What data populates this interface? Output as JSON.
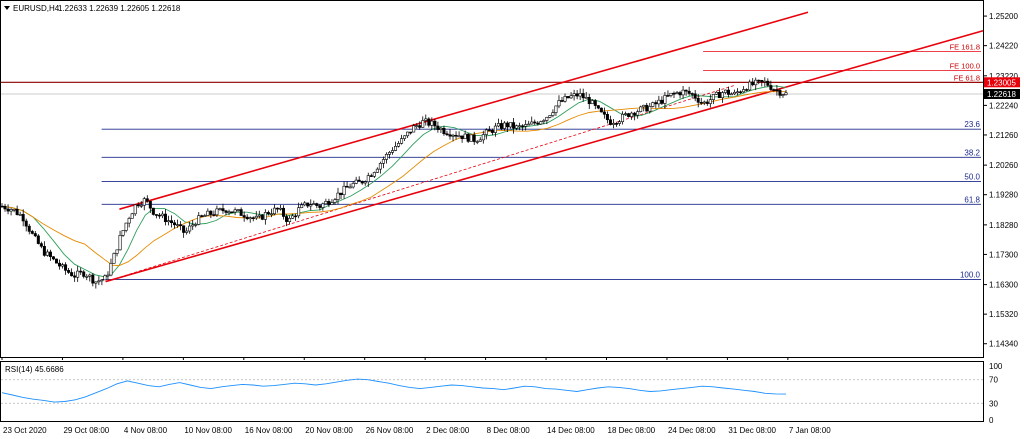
{
  "header": {
    "symbol": "EURUSD,H4",
    "ohlc": "1.22633 1.22639 1.22605 1.22618",
    "menu_icon": "triangle-down-icon"
  },
  "colors": {
    "background": "#ffffff",
    "candle": "#000000",
    "channel": "#e8000b",
    "fib_line": "#1b2a8c",
    "fe_line": "#e8000b",
    "ma_fast": "#2e9e5b",
    "ma_slow": "#e68a00",
    "rsi": "#1e90ff",
    "price_tag_red": "#e8000b",
    "price_tag_black": "#000000"
  },
  "chart_data": [
    {
      "type": "candlestick",
      "title": "EURUSD,H4",
      "x": [
        "23 Oct 2020",
        "29 Oct 08:00",
        "4 Nov 08:00",
        "10 Nov 08:00",
        "16 Nov 08:00",
        "20 Nov 08:00",
        "26 Nov 08:00",
        "2 Dec 08:00",
        "8 Dec 08:00",
        "14 Dec 08:00",
        "18 Dec 08:00",
        "24 Dec 08:00",
        "31 Dec 08:00",
        "7 Jan 08:00"
      ],
      "y_ticks": [
        "1.25200",
        "1.24220",
        "1.23220",
        "1.22240",
        "1.21260",
        "1.20260",
        "1.19280",
        "1.18280",
        "1.17300",
        "1.16300",
        "1.15320",
        "1.14340"
      ],
      "ylim": [
        1.139,
        1.257
      ],
      "close_path": [
        {
          "x": 0,
          "close": 1.189
        },
        {
          "x": 0.6,
          "close": 1.188
        },
        {
          "x": 1.2,
          "close": 1.1855
        },
        {
          "x": 1.8,
          "close": 1.179
        },
        {
          "x": 2.4,
          "close": 1.174
        },
        {
          "x": 3.0,
          "close": 1.171
        },
        {
          "x": 3.6,
          "close": 1.168
        },
        {
          "x": 4.2,
          "close": 1.166
        },
        {
          "x": 4.8,
          "close": 1.167
        },
        {
          "x": 5.4,
          "close": 1.164
        },
        {
          "x": 6.0,
          "close": 1.165
        },
        {
          "x": 6.4,
          "close": 1.171
        },
        {
          "x": 6.8,
          "close": 1.178
        },
        {
          "x": 7.3,
          "close": 1.185
        },
        {
          "x": 7.8,
          "close": 1.19
        },
        {
          "x": 8.3,
          "close": 1.191
        },
        {
          "x": 8.8,
          "close": 1.187
        },
        {
          "x": 9.4,
          "close": 1.185
        },
        {
          "x": 10.0,
          "close": 1.183
        },
        {
          "x": 10.6,
          "close": 1.18
        },
        {
          "x": 11.2,
          "close": 1.184
        },
        {
          "x": 11.8,
          "close": 1.186
        },
        {
          "x": 12.4,
          "close": 1.187
        },
        {
          "x": 13.0,
          "close": 1.188
        },
        {
          "x": 13.6,
          "close": 1.187
        },
        {
          "x": 14.2,
          "close": 1.186
        },
        {
          "x": 14.8,
          "close": 1.1845
        },
        {
          "x": 15.4,
          "close": 1.187
        },
        {
          "x": 16.0,
          "close": 1.188
        },
        {
          "x": 16.6,
          "close": 1.184
        },
        {
          "x": 17.2,
          "close": 1.188
        },
        {
          "x": 17.8,
          "close": 1.19
        },
        {
          "x": 18.4,
          "close": 1.189
        },
        {
          "x": 19.0,
          "close": 1.191
        },
        {
          "x": 19.6,
          "close": 1.1935
        },
        {
          "x": 20.2,
          "close": 1.196
        },
        {
          "x": 20.8,
          "close": 1.197
        },
        {
          "x": 21.4,
          "close": 1.2
        },
        {
          "x": 22.0,
          "close": 1.204
        },
        {
          "x": 22.6,
          "close": 1.208
        },
        {
          "x": 23.2,
          "close": 1.211
        },
        {
          "x": 23.8,
          "close": 1.215
        },
        {
          "x": 24.4,
          "close": 1.217
        },
        {
          "x": 25.0,
          "close": 1.216
        },
        {
          "x": 25.6,
          "close": 1.214
        },
        {
          "x": 26.2,
          "close": 1.213
        },
        {
          "x": 26.8,
          "close": 1.212
        },
        {
          "x": 27.4,
          "close": 1.211
        },
        {
          "x": 28.0,
          "close": 1.213
        },
        {
          "x": 28.6,
          "close": 1.215
        },
        {
          "x": 29.2,
          "close": 1.216
        },
        {
          "x": 29.8,
          "close": 1.215
        },
        {
          "x": 30.4,
          "close": 1.2155
        },
        {
          "x": 31.0,
          "close": 1.217
        },
        {
          "x": 31.6,
          "close": 1.219
        },
        {
          "x": 32.2,
          "close": 1.223
        },
        {
          "x": 32.8,
          "close": 1.225
        },
        {
          "x": 33.4,
          "close": 1.226
        },
        {
          "x": 34.0,
          "close": 1.224
        },
        {
          "x": 34.6,
          "close": 1.22
        },
        {
          "x": 35.2,
          "close": 1.217
        },
        {
          "x": 35.8,
          "close": 1.218
        },
        {
          "x": 36.4,
          "close": 1.22
        },
        {
          "x": 37.0,
          "close": 1.221
        },
        {
          "x": 37.6,
          "close": 1.222
        },
        {
          "x": 38.2,
          "close": 1.224
        },
        {
          "x": 38.8,
          "close": 1.226
        },
        {
          "x": 39.4,
          "close": 1.227
        },
        {
          "x": 40.0,
          "close": 1.226
        },
        {
          "x": 40.6,
          "close": 1.223
        },
        {
          "x": 41.2,
          "close": 1.225
        },
        {
          "x": 41.8,
          "close": 1.227
        },
        {
          "x": 42.4,
          "close": 1.226
        },
        {
          "x": 43.0,
          "close": 1.2285
        },
        {
          "x": 43.6,
          "close": 1.2295
        },
        {
          "x": 44.2,
          "close": 1.23
        },
        {
          "x": 44.8,
          "close": 1.2275
        },
        {
          "x": 45.4,
          "close": 1.2262
        }
      ],
      "fib_retracement": [
        {
          "label": "23.6",
          "price": 1.2145
        },
        {
          "label": "38.2",
          "price": 1.2052
        },
        {
          "label": "50.0",
          "price": 1.1972
        },
        {
          "label": "61.8",
          "price": 1.1896
        },
        {
          "label": "100.0",
          "price": 1.1647
        }
      ],
      "fib_expansion": [
        {
          "label": "FE 161.8",
          "price": 1.2403
        },
        {
          "label": "FE 100.0",
          "price": 1.234
        },
        {
          "label": "FE 61.8",
          "price": 1.23
        }
      ],
      "price_tags": [
        {
          "label": "1.23005",
          "price": 1.23005,
          "color": "red"
        },
        {
          "label": "1.22618",
          "price": 1.22618,
          "color": "black"
        }
      ]
    },
    {
      "type": "line",
      "title": "RSI(14) 45.6686",
      "y_ticks": [
        "100",
        "70",
        "30",
        "0"
      ],
      "ylim": [
        0,
        100
      ],
      "levels": [
        70,
        30
      ],
      "values": [
        48,
        44,
        40,
        37,
        35,
        32,
        33,
        36,
        41,
        48,
        55,
        63,
        68,
        64,
        60,
        58,
        62,
        65,
        61,
        57,
        55,
        58,
        60,
        62,
        61,
        59,
        60,
        62,
        64,
        63,
        61,
        63,
        66,
        69,
        71,
        70,
        67,
        64,
        60,
        57,
        55,
        57,
        59,
        61,
        60,
        58,
        56,
        55,
        53,
        56,
        59,
        58,
        55,
        54,
        52,
        50,
        53,
        56,
        58,
        57,
        55,
        52,
        50,
        51,
        53,
        55,
        57,
        59,
        58,
        56,
        54,
        52,
        50,
        47,
        46,
        45.6686
      ]
    }
  ]
}
